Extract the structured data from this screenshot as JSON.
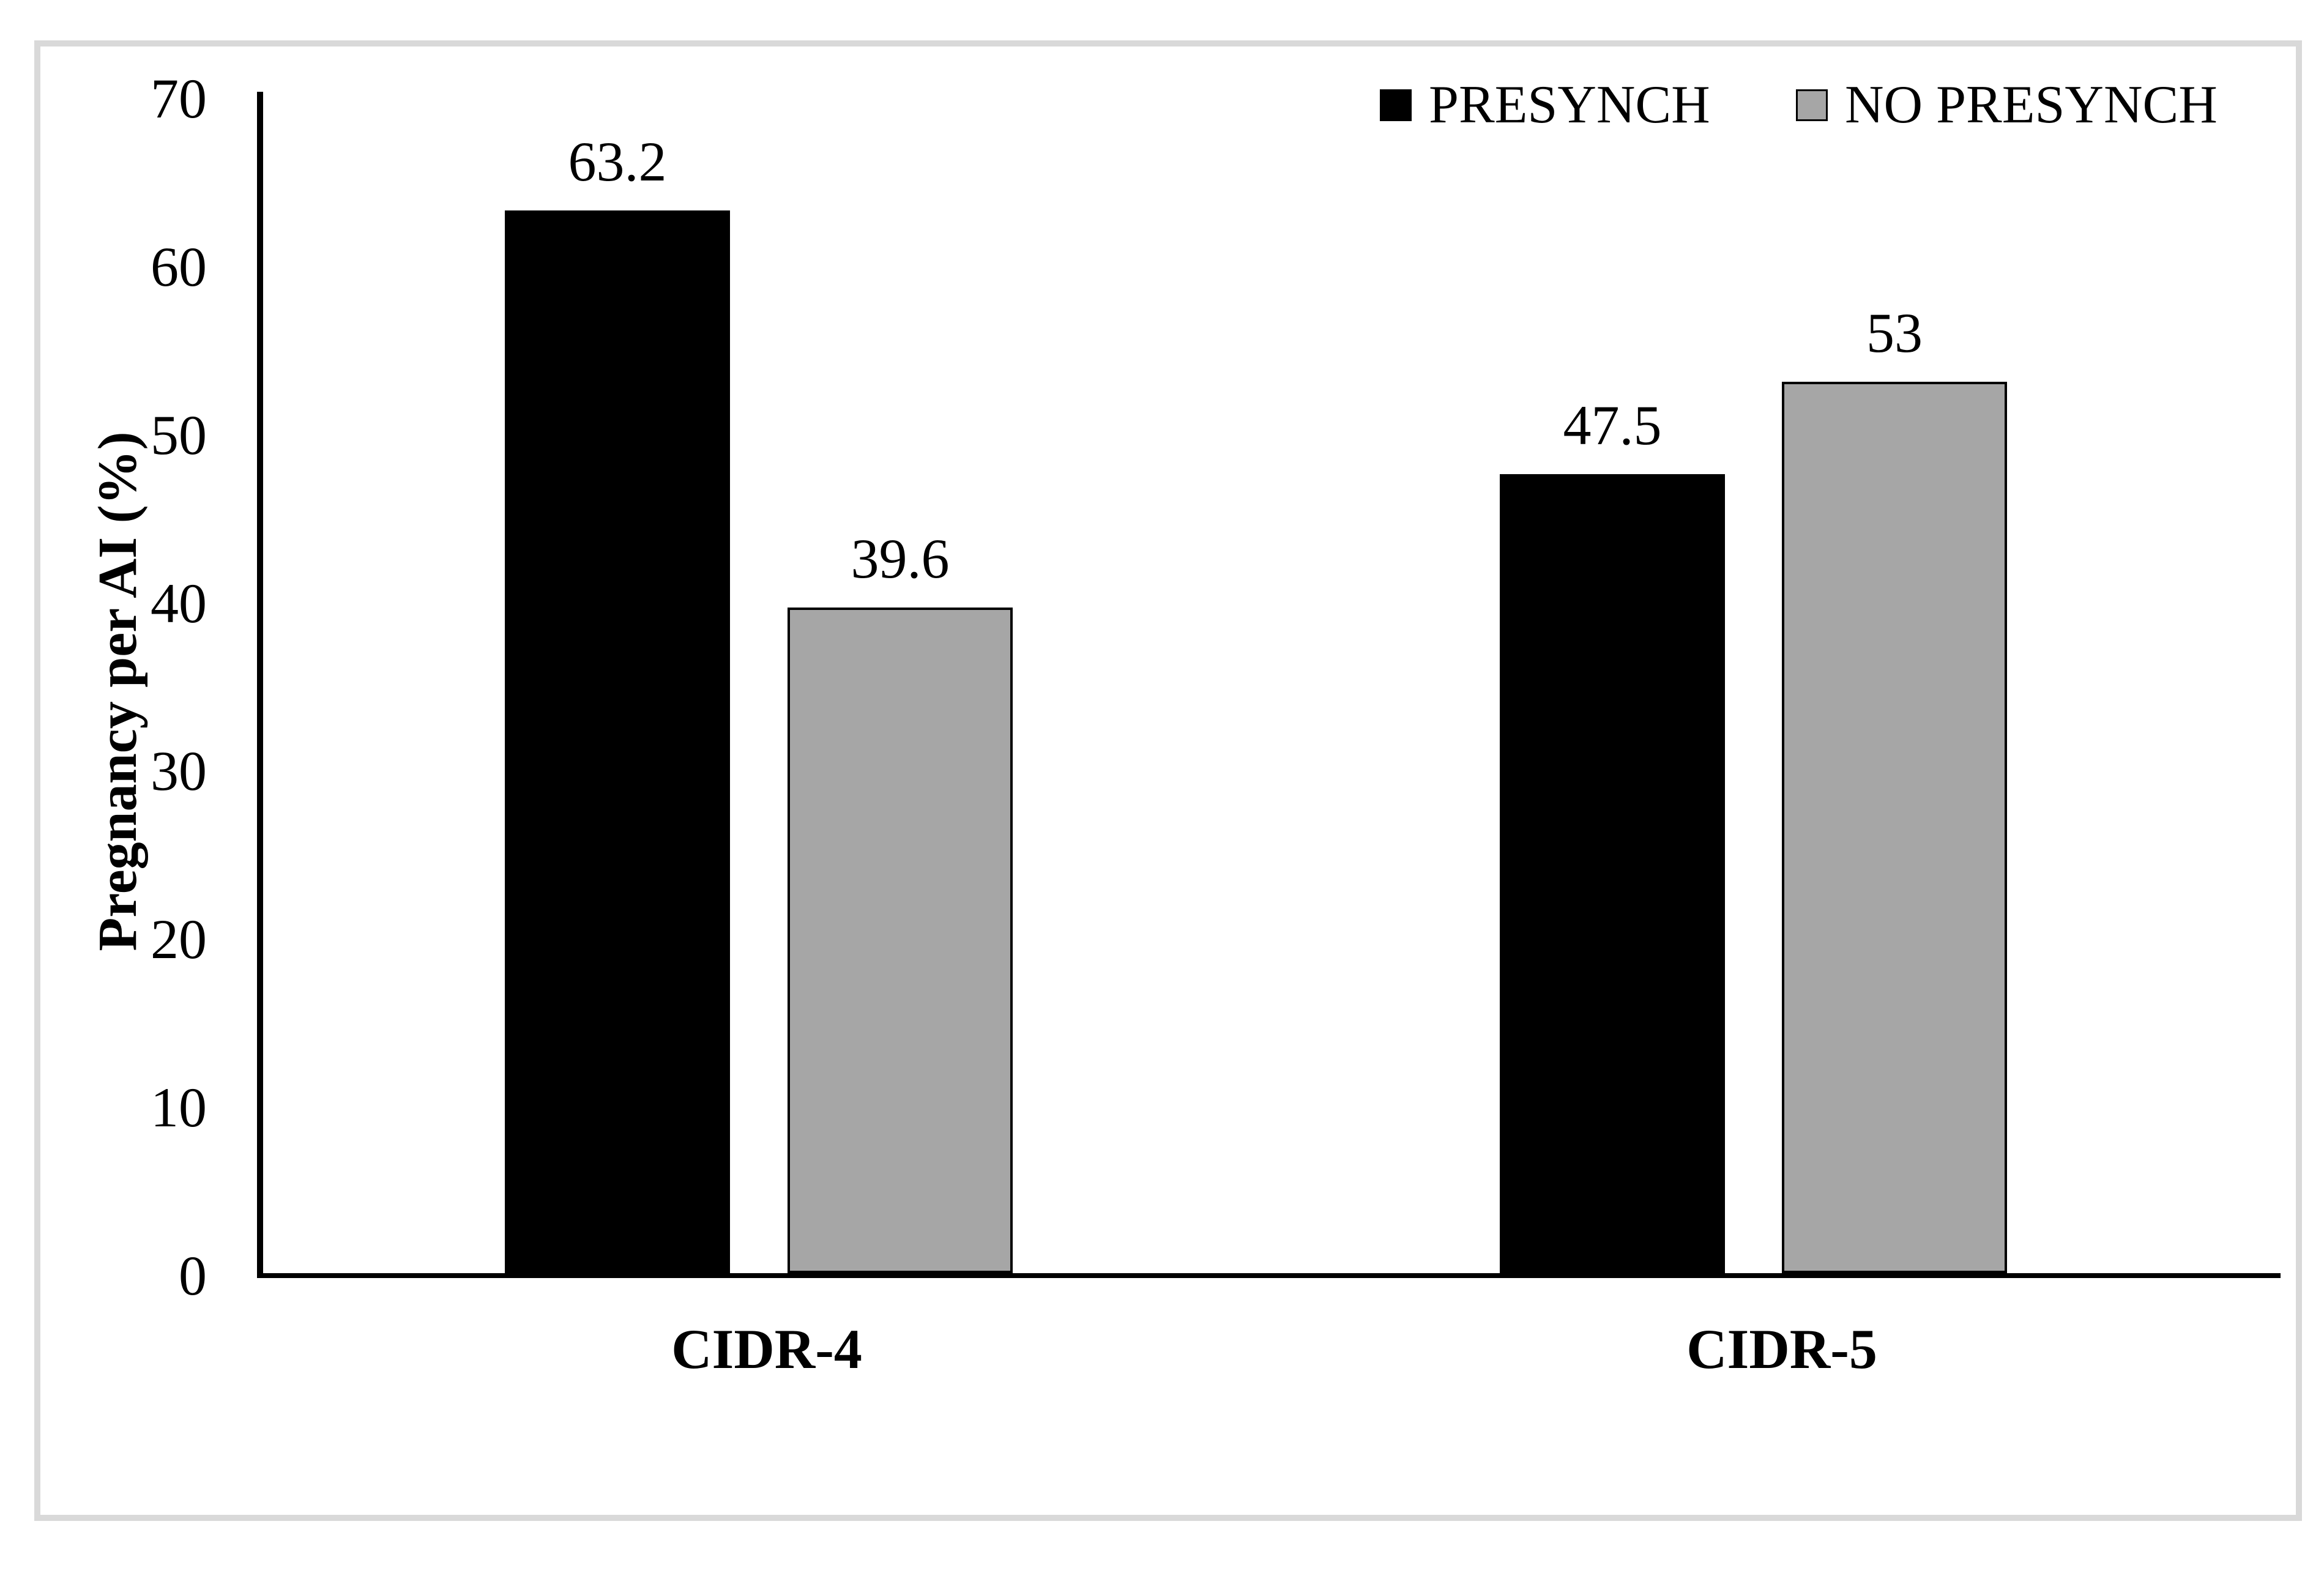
{
  "chart_data": {
    "type": "bar",
    "title": "",
    "categories": [
      "CIDR-4",
      "CIDR-5"
    ],
    "series": [
      {
        "name": "PRESYNCH",
        "color": "#000000",
        "values": [
          63.2,
          47.5
        ],
        "labels": [
          "63.2",
          "47.5"
        ]
      },
      {
        "name": "NO PRESYNCH",
        "color": "#a6a6a6",
        "values": [
          39.6,
          53
        ],
        "labels": [
          "39.6",
          "53"
        ]
      }
    ],
    "ylabel": "Pregnancy per AI (%)",
    "xlabel": "",
    "ylim": [
      0,
      70
    ],
    "yticks": [
      0,
      10,
      20,
      30,
      40,
      50,
      60,
      70
    ],
    "grid": false,
    "legend": {
      "position": "top-right",
      "entries": [
        "PRESYNCH",
        "NO PRESYNCH"
      ]
    },
    "bar_border_color": "#000000",
    "frame_color": "#d9d9d9"
  }
}
